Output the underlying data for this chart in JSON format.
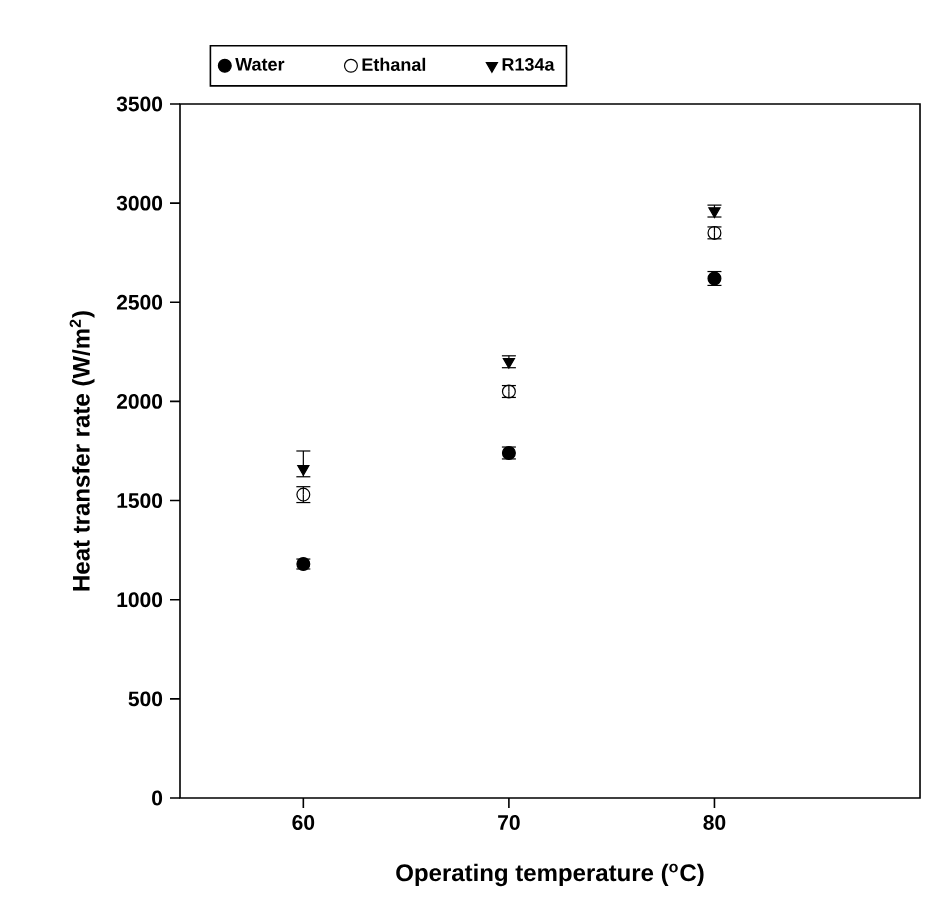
{
  "chart_data": {
    "type": "scatter",
    "xlabel": "Operating temperature ($^{o}$C)",
    "ylabel": "Heat transfer rate (W/m$^{2}$)",
    "x": [
      60,
      70,
      80
    ],
    "xlim": [
      54,
      90
    ],
    "xticks": [
      60,
      70,
      80
    ],
    "ylim": [
      0,
      3500
    ],
    "yticks": [
      0,
      500,
      1000,
      1500,
      2000,
      2500,
      3000,
      3500
    ],
    "grid": false,
    "legend": "top",
    "series": [
      {
        "name": "Water",
        "color": "#000000",
        "marker": "circle",
        "values": [
          1180,
          1740,
          2620
        ],
        "errors": [
          25,
          30,
          35
        ]
      },
      {
        "name": "Ethanal",
        "color": "#000000",
        "marker": "open circle",
        "values": [
          1530,
          2050,
          2850
        ],
        "errors": [
          40,
          30,
          30
        ]
      },
      {
        "name": "R134a",
        "color": "#000000",
        "marker": "triangle",
        "values": [
          1660,
          2200,
          2960
        ],
        "errors": [
          [
            1620,
            1750
          ],
          30,
          30
        ]
      }
    ]
  }
}
